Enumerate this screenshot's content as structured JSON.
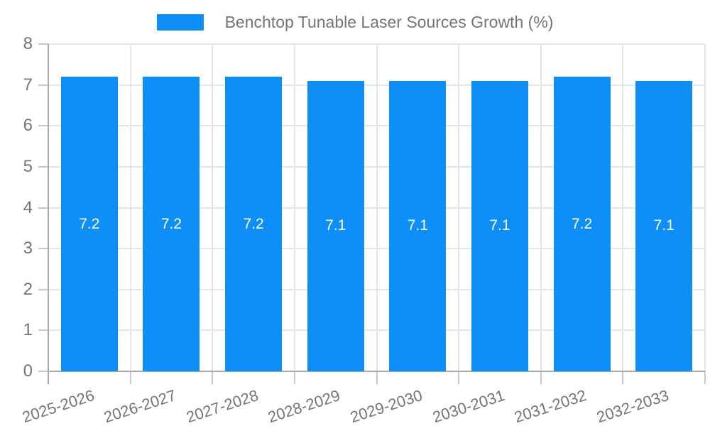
{
  "chart_data": {
    "type": "bar",
    "title": "Benchtop Tunable Laser Sources Growth (%)",
    "categories": [
      "2025-2026",
      "2026-2027",
      "2027-2028",
      "2028-2029",
      "2029-2030",
      "2030-2031",
      "2031-2032",
      "2032-2033"
    ],
    "values": [
      7.2,
      7.2,
      7.2,
      7.1,
      7.1,
      7.1,
      7.2,
      7.1
    ],
    "ylim": [
      0,
      8
    ],
    "yticks": [
      0,
      1,
      2,
      3,
      4,
      5,
      6,
      7,
      8
    ],
    "grid": true,
    "legend_position": "top-center",
    "x_label_rotation_deg": -18,
    "colors": {
      "bar": "#0d8ff7",
      "value_label": "#ffffff",
      "axis": "#a8a8a8",
      "gridline": "#e6e6e6",
      "tick": "#c9c9c9",
      "tick_label": "#757575",
      "legend_text": "#757575",
      "background": "#ffffff"
    }
  }
}
